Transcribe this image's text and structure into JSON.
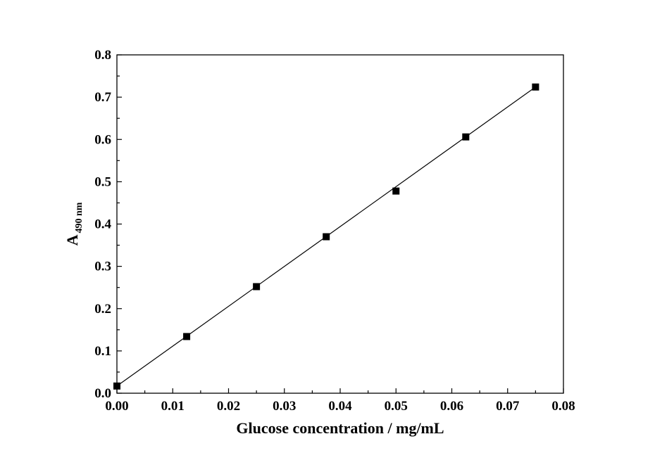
{
  "chart_data": {
    "type": "scatter",
    "title": "",
    "xlabel": "Glucose concentration / mg/mL",
    "ylabel": {
      "main": "A",
      "subscript": "490 nm"
    },
    "xlim": [
      0.0,
      0.08
    ],
    "ylim": [
      0.0,
      0.8
    ],
    "x_ticks": [
      "0.00",
      "0.01",
      "0.02",
      "0.03",
      "0.04",
      "0.05",
      "0.06",
      "0.07",
      "0.08"
    ],
    "y_ticks": [
      "0.0",
      "0.1",
      "0.2",
      "0.3",
      "0.4",
      "0.5",
      "0.6",
      "0.7",
      "0.8"
    ],
    "grid": false,
    "legend": "none",
    "series": [
      {
        "marker": "square",
        "color": "#000000",
        "x": [
          0.0,
          0.0125,
          0.025,
          0.0375,
          0.05,
          0.0625,
          0.075
        ],
        "y": [
          0.017,
          0.134,
          0.252,
          0.37,
          0.478,
          0.606,
          0.724
        ]
      }
    ],
    "fit_line": {
      "x": [
        0.0,
        0.075
      ],
      "y": [
        0.017,
        0.724
      ],
      "color": "#000000"
    }
  }
}
